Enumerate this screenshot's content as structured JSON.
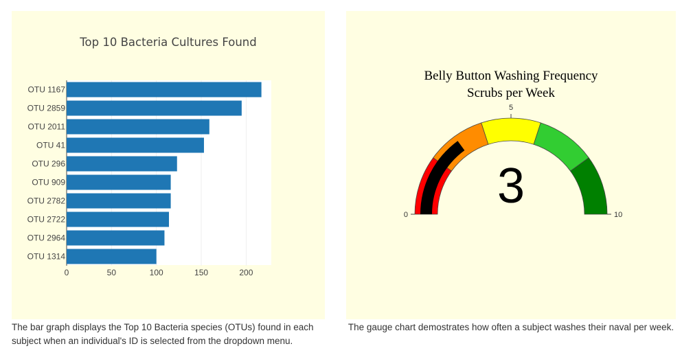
{
  "bar_caption": "The bar graph displays the Top 10 Bacteria species (OTUs) found in each subject when an individual's ID is selected from the dropdown menu.",
  "gauge_caption": "The gauge chart demostrates how often a subject washes their naval per week.",
  "chart_data": [
    {
      "type": "bar",
      "orientation": "horizontal",
      "title": "Top 10 Bacteria Cultures Found",
      "categories": [
        "OTU 1167",
        "OTU 2859",
        "OTU 2011",
        "OTU 41",
        "OTU 296",
        "OTU 909",
        "OTU 2782",
        "OTU 2722",
        "OTU 2964",
        "OTU 1314"
      ],
      "values": [
        217,
        195,
        159,
        153,
        123,
        116,
        116,
        114,
        109,
        100
      ],
      "xticks": [
        0,
        50,
        100,
        150,
        200
      ],
      "xlim": [
        0,
        228
      ],
      "grid": true,
      "color": "#1f77b4"
    },
    {
      "type": "gauge",
      "title": "Belly Button Washing Frequency",
      "subtitle": "Scrubs per Week",
      "value": 3,
      "range": [
        0,
        10
      ],
      "tick_labels": [
        "0",
        "5",
        "10"
      ],
      "bar_color": "#000000",
      "steps": [
        {
          "range": [
            0,
            2
          ],
          "color": "#ff0000"
        },
        {
          "range": [
            2,
            4
          ],
          "color": "#ff8c00"
        },
        {
          "range": [
            4,
            6
          ],
          "color": "#ffff00"
        },
        {
          "range": [
            6,
            8
          ],
          "color": "#32cd32"
        },
        {
          "range": [
            8,
            10
          ],
          "color": "#008000"
        }
      ]
    }
  ]
}
